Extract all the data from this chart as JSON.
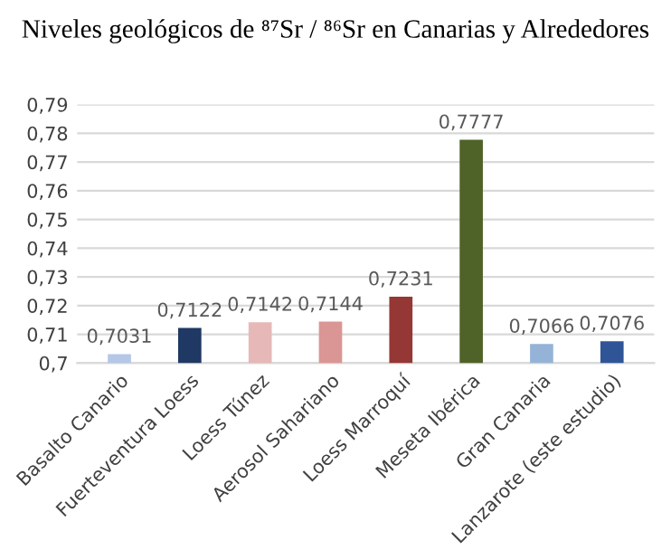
{
  "chart_data": {
    "type": "bar",
    "title": "Niveles geológicos de ⁸⁷Sr / ⁸⁶Sr en Canarias y Alrededores",
    "categories": [
      "Basalto Canario",
      "Fuerteventura Loess",
      "Loess Túnez",
      "Aerosol Sahariano",
      "Loess Marroquí",
      "Meseta Ibérica",
      "Gran Canaria",
      "Lanzarote (este estudio)"
    ],
    "values": [
      0.7031,
      0.7122,
      0.7142,
      0.7144,
      0.7231,
      0.7777,
      0.7066,
      0.7076
    ],
    "value_labels": [
      "0,7031",
      "0,7122",
      "0,7142",
      "0,7144",
      "0,7231",
      "0,7777",
      "0,7066",
      "0,7076"
    ],
    "colors": [
      "#b4c7e7",
      "#203864",
      "#e6b8b7",
      "#da9694",
      "#953735",
      "#4f6228",
      "#95b3d7",
      "#2f5597"
    ],
    "ylim": [
      0.7,
      0.79
    ],
    "yticks": [
      {
        "value": 0.7,
        "label": "0,7"
      },
      {
        "value": 0.71,
        "label": "0,71"
      },
      {
        "value": 0.72,
        "label": "0,72"
      },
      {
        "value": 0.73,
        "label": "0,73"
      },
      {
        "value": 0.74,
        "label": "0,74"
      },
      {
        "value": 0.75,
        "label": "0,75"
      },
      {
        "value": 0.76,
        "label": "0,76"
      },
      {
        "value": 0.77,
        "label": "0,77"
      },
      {
        "value": 0.78,
        "label": "0,78"
      },
      {
        "value": 0.79,
        "label": "0,79"
      }
    ],
    "grid": "y"
  }
}
